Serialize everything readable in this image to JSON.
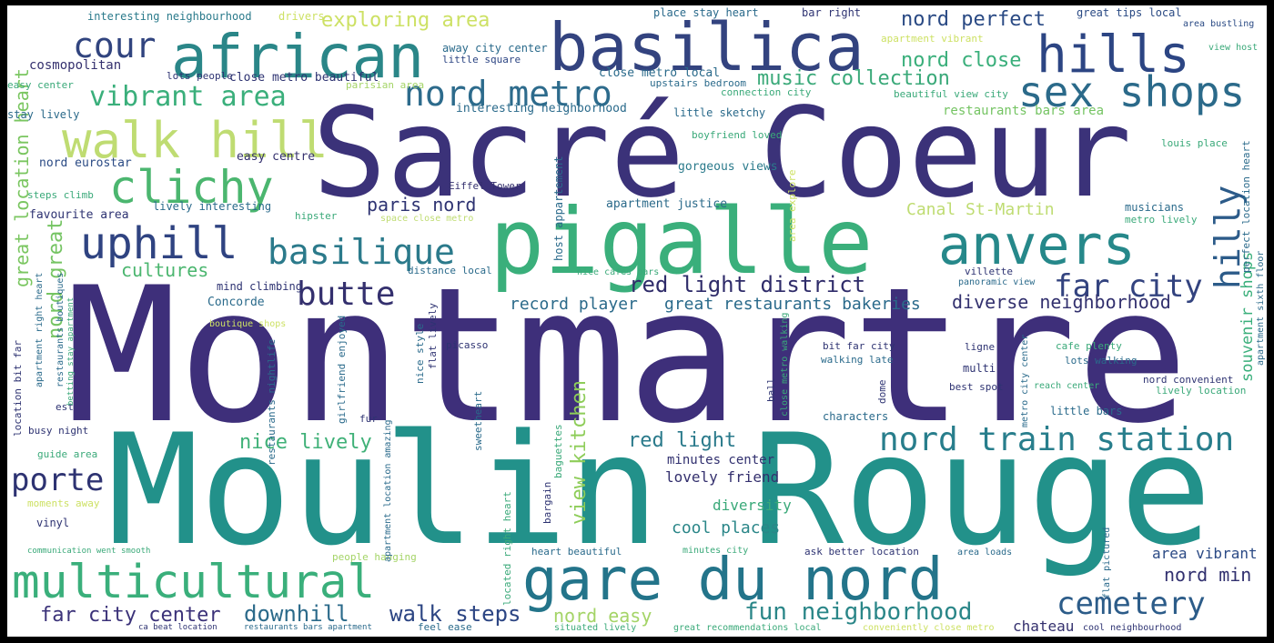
{
  "word_cloud": {
    "colors": {
      "background": "#ffffff",
      "frame": "#000000"
    },
    "words": [
      {
        "text": "Montmartre",
        "color": "#3e2f7a"
      },
      {
        "text": "Moulin Rouge",
        "color": "#22918a"
      },
      {
        "text": "Sacré Coeur",
        "color": "#3b3279"
      },
      {
        "text": "pigalle",
        "color": "#3aaf7b"
      },
      {
        "text": "basilica",
        "color": "#33437f"
      },
      {
        "text": "african",
        "color": "#2a8688"
      },
      {
        "text": "gare du nord",
        "color": "#23748a"
      },
      {
        "text": "multicultural",
        "color": "#3aaf7b"
      },
      {
        "text": "anvers",
        "color": "#26888a"
      },
      {
        "text": "hills",
        "color": "#2c4583"
      },
      {
        "text": "sex shops",
        "color": "#2b6a8a"
      },
      {
        "text": "walk hill",
        "color": "#bfdc72"
      },
      {
        "text": "clichy",
        "color": "#4bb66f"
      },
      {
        "text": "cour",
        "color": "#31447f"
      },
      {
        "text": "uphill",
        "color": "#2f4381"
      },
      {
        "text": "basilique",
        "color": "#2b7a8b"
      },
      {
        "text": "nord metro",
        "color": "#2d6b8c"
      },
      {
        "text": "vibrant area",
        "color": "#3aaf7b"
      },
      {
        "text": "butte",
        "color": "#34306e"
      },
      {
        "text": "far city",
        "color": "#33437f"
      },
      {
        "text": "hilly",
        "color": "#2c5b89"
      },
      {
        "text": "nord train station",
        "color": "#287e8c"
      },
      {
        "text": "cemetery",
        "color": "#2c5c89"
      },
      {
        "text": "porte",
        "color": "#2e3372"
      },
      {
        "text": "red light district",
        "color": "#2f2c6a"
      },
      {
        "text": "music collection",
        "color": "#3aa979"
      },
      {
        "text": "exploring area",
        "color": "#cde164"
      },
      {
        "text": "nord perfect",
        "color": "#2a4a84"
      },
      {
        "text": "nord close",
        "color": "#3aaf7b"
      },
      {
        "text": "fun neighborhood",
        "color": "#2a8688"
      },
      {
        "text": "downhill",
        "color": "#2b6a8a"
      },
      {
        "text": "walk steps",
        "color": "#2c4583"
      },
      {
        "text": "far city center",
        "color": "#3b3279"
      },
      {
        "text": "nice lively",
        "color": "#40b178"
      },
      {
        "text": "red light",
        "color": "#2a7a8b"
      },
      {
        "text": "view kitchen",
        "color": "#8ecd59"
      },
      {
        "text": "cultures",
        "color": "#4bb66f"
      },
      {
        "text": "paris nord",
        "color": "#2e3372"
      },
      {
        "text": "Canal St-Martin",
        "color": "#bfdc72"
      },
      {
        "text": "nord great",
        "color": "#75c463"
      },
      {
        "text": "great location heart",
        "color": "#7ac660"
      },
      {
        "text": "diverse neighborhood",
        "color": "#32306e"
      },
      {
        "text": "nord min",
        "color": "#31306f"
      },
      {
        "text": "great restaurants bakeries",
        "color": "#2a6a8b"
      },
      {
        "text": "record player",
        "color": "#2b6a8a"
      },
      {
        "text": "nord easy",
        "color": "#a4d467"
      },
      {
        "text": "cool places",
        "color": "#2a8688"
      },
      {
        "text": "diversity",
        "color": "#3aa979"
      },
      {
        "text": "lovely friend",
        "color": "#34306e"
      },
      {
        "text": "minutes center",
        "color": "#31306f"
      },
      {
        "text": "area vibrant",
        "color": "#2b4a85"
      },
      {
        "text": "chateau",
        "color": "#34306e"
      },
      {
        "text": "souvenir shops",
        "color": "#3aaf7b"
      },
      {
        "text": "cosmopolitan",
        "color": "#34306e"
      },
      {
        "text": "interesting neighbourhood",
        "color": "#2a7a8b"
      },
      {
        "text": "close metro beautiful",
        "color": "#2e3372"
      },
      {
        "text": "close metro local",
        "color": "#2a6a8b"
      },
      {
        "text": "interesting neighborhood",
        "color": "#2a6a8b"
      },
      {
        "text": "restaurants bars area",
        "color": "#75c463"
      },
      {
        "text": "apartment justice",
        "color": "#2b6a8a"
      },
      {
        "text": "gorgeous views",
        "color": "#2a7a8b"
      },
      {
        "text": "easy centre",
        "color": "#34306e"
      },
      {
        "text": "nord eurostar",
        "color": "#2a4a84"
      },
      {
        "text": "favourite area",
        "color": "#2e3372"
      },
      {
        "text": "lively interesting",
        "color": "#2a6a8b"
      },
      {
        "text": "stay lively",
        "color": "#2b6a8a"
      },
      {
        "text": "steps climb",
        "color": "#3aa979"
      },
      {
        "text": "great tips local",
        "color": "#2a4a84"
      },
      {
        "text": "bar right",
        "color": "#2e3372"
      },
      {
        "text": "place stay heart",
        "color": "#2a6a8b"
      },
      {
        "text": "away city center",
        "color": "#2a6a8b"
      },
      {
        "text": "little square",
        "color": "#2c4583"
      },
      {
        "text": "Eiffel Tower",
        "color": "#34306e"
      },
      {
        "text": "drivers",
        "color": "#cde164"
      },
      {
        "text": "lots people",
        "color": "#2e3372"
      },
      {
        "text": "easy center",
        "color": "#3aa979"
      },
      {
        "text": "parisian area",
        "color": "#a4d467"
      },
      {
        "text": "upstairs bedroom",
        "color": "#2a6a8b"
      },
      {
        "text": "connection city",
        "color": "#3aa979"
      },
      {
        "text": "beautiful view city",
        "color": "#3aa979"
      },
      {
        "text": "little sketchy",
        "color": "#2a6a8b"
      },
      {
        "text": "boyfriend loved",
        "color": "#3aa979"
      },
      {
        "text": "louis place",
        "color": "#3aa979"
      },
      {
        "text": "apartment vibrant",
        "color": "#cde164"
      },
      {
        "text": "area bustling",
        "color": "#2a4a84"
      },
      {
        "text": "view host",
        "color": "#3aa979"
      },
      {
        "text": "musicians",
        "color": "#2a6a8b"
      },
      {
        "text": "metro lively",
        "color": "#3aa979"
      },
      {
        "text": "hipster",
        "color": "#3aa979"
      },
      {
        "text": "space close metro",
        "color": "#bfdc72"
      },
      {
        "text": "distance local",
        "color": "#2a6a8b"
      },
      {
        "text": "villette",
        "color": "#2e3372"
      },
      {
        "text": "panoramic view",
        "color": "#2a6a8b"
      },
      {
        "text": "mind climbing",
        "color": "#2e3372"
      },
      {
        "text": "Concorde",
        "color": "#2a6a8b"
      },
      {
        "text": "boutique shops",
        "color": "#cde164"
      },
      {
        "text": "nice cafes bars",
        "color": "#3aa979"
      },
      {
        "text": "picasso",
        "color": "#2e3372"
      },
      {
        "text": "ligne",
        "color": "#2e3372"
      },
      {
        "text": "multi",
        "color": "#2e3372"
      },
      {
        "text": "walking late",
        "color": "#2a6a8b"
      },
      {
        "text": "bit far city",
        "color": "#2e3372"
      },
      {
        "text": "lots walking",
        "color": "#2a6a8b"
      },
      {
        "text": "cafe plenty",
        "color": "#3aa979"
      },
      {
        "text": "nord convenient",
        "color": "#2e3372"
      },
      {
        "text": "lively location",
        "color": "#3aa979"
      },
      {
        "text": "best spot",
        "color": "#2e3372"
      },
      {
        "text": "reach center",
        "color": "#3aa979"
      },
      {
        "text": "characters",
        "color": "#2a6a8b"
      },
      {
        "text": "little bars",
        "color": "#2a6a8b"
      },
      {
        "text": "fur",
        "color": "#2e3372"
      },
      {
        "text": "est",
        "color": "#2e3372"
      },
      {
        "text": "busy night",
        "color": "#2e3372"
      },
      {
        "text": "guide area",
        "color": "#3aa979"
      },
      {
        "text": "vinyl",
        "color": "#2e3372"
      },
      {
        "text": "moments away",
        "color": "#cde164"
      },
      {
        "text": "communication went smooth",
        "color": "#3aa979"
      },
      {
        "text": "ca beat location",
        "color": "#2e3372"
      },
      {
        "text": "restaurants bars apartment",
        "color": "#2a6a8b"
      },
      {
        "text": "feel ease",
        "color": "#2a6a8b"
      },
      {
        "text": "people hanging",
        "color": "#a4d467"
      },
      {
        "text": "heart beautiful",
        "color": "#2a6a8b"
      },
      {
        "text": "minutes city",
        "color": "#3aa979"
      },
      {
        "text": "ask better location",
        "color": "#2e3372"
      },
      {
        "text": "area loads",
        "color": "#2a6a8b"
      },
      {
        "text": "situated lively",
        "color": "#3aa979"
      },
      {
        "text": "great recommendations local",
        "color": "#3aa979"
      },
      {
        "text": "conveniently close metro",
        "color": "#cde164"
      },
      {
        "text": "cool neighbourhood",
        "color": "#2e3372"
      },
      {
        "text": "perfect location heart",
        "color": "#2a6a8b"
      },
      {
        "text": "apartment sixth floor",
        "color": "#2a6a8b"
      },
      {
        "text": "host appartement",
        "color": "#2a6a8b"
      },
      {
        "text": "area explore",
        "color": "#cde164"
      },
      {
        "text": "nice style",
        "color": "#2a6a8b"
      },
      {
        "text": "flat lively",
        "color": "#2e3372"
      },
      {
        "text": "girlfriend enjoyed",
        "color": "#2a6a8b"
      },
      {
        "text": "apartment location amazing",
        "color": "#2a6a8b"
      },
      {
        "text": "restaurants nightlife",
        "color": "#2a6a8b"
      },
      {
        "text": "sweetheart",
        "color": "#2a6a8b"
      },
      {
        "text": "located right heart",
        "color": "#3aa979"
      },
      {
        "text": "flat pictured",
        "color": "#2a6a8b"
      },
      {
        "text": "bargain",
        "color": "#2e3372"
      },
      {
        "text": "baguettes",
        "color": "#3aa979"
      },
      {
        "text": "dome",
        "color": "#2e3372"
      },
      {
        "text": "ball",
        "color": "#2e3372"
      },
      {
        "text": "close metro walking",
        "color": "#3aa979"
      },
      {
        "text": "metro city center",
        "color": "#2a6a8b"
      },
      {
        "text": "location bit far",
        "color": "#2e3372"
      },
      {
        "text": "apartment right heart",
        "color": "#2a6a8b"
      },
      {
        "text": "restaurants boutiques",
        "color": "#2a6a8b"
      },
      {
        "text": "betting stay apartment",
        "color": "#3aa979"
      }
    ]
  }
}
